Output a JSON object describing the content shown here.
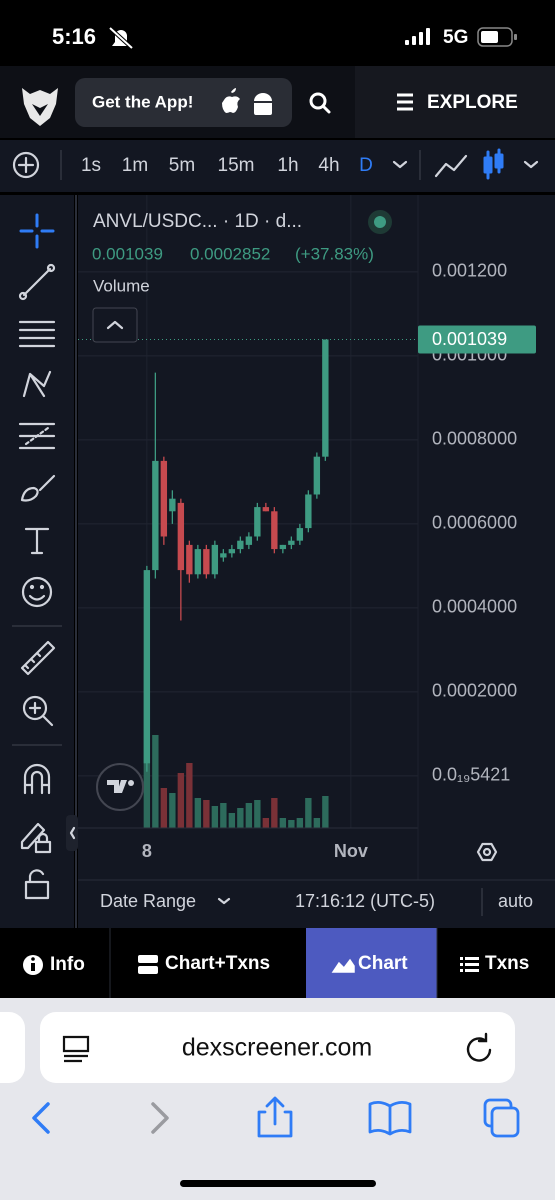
{
  "status_bar": {
    "time": "5:16",
    "network": "5G"
  },
  "header": {
    "app_button": "Get the App!",
    "explore": "EXPLORE"
  },
  "toolbar": {
    "intervals": [
      "1s",
      "1m",
      "5m",
      "15m",
      "1h",
      "4h",
      "D"
    ]
  },
  "chart_data": {
    "type": "candlestick",
    "title": "ANVL/USDC... · 1D · d...",
    "legend_values": [
      "0.001039",
      "0.0002852",
      "(+37.83%)"
    ],
    "x": [
      0,
      1,
      2,
      3,
      4,
      5,
      6,
      7,
      8,
      9,
      10,
      11,
      12,
      13,
      14,
      15,
      16,
      17,
      18,
      19,
      20,
      21
    ],
    "open": [
      3e-05,
      0.00049,
      0.00075,
      0.00063,
      0.00065,
      0.00055,
      0.00048,
      0.00054,
      0.00048,
      0.00052,
      0.00053,
      0.00054,
      0.00055,
      0.00057,
      0.00064,
      0.00063,
      0.00054,
      0.00055,
      0.00056,
      0.00059,
      0.00067,
      0.00076
    ],
    "high": [
      0.0005,
      0.00096,
      0.00076,
      0.00068,
      0.00066,
      0.00056,
      0.00055,
      0.00055,
      0.00056,
      0.00054,
      0.00055,
      0.00057,
      0.00058,
      0.00065,
      0.00065,
      0.00064,
      0.00055,
      0.00057,
      0.0006,
      0.00068,
      0.00077,
      0.001039
    ],
    "low": [
      1e-05,
      0.00047,
      0.00055,
      0.0006,
      0.00037,
      0.00046,
      0.00047,
      0.00047,
      0.00047,
      0.00051,
      0.00052,
      0.00053,
      0.00054,
      0.00056,
      0.00063,
      0.00053,
      0.00053,
      0.00054,
      0.00055,
      0.00058,
      0.00066,
      0.00075
    ],
    "close": [
      0.00049,
      0.00075,
      0.00057,
      0.00066,
      0.00049,
      0.00048,
      0.00054,
      0.00048,
      0.00055,
      0.00053,
      0.00054,
      0.00056,
      0.00057,
      0.00064,
      0.00063,
      0.00054,
      0.00055,
      0.00056,
      0.00059,
      0.00067,
      0.00076,
      0.001039
    ],
    "up_color": "#3e9b82",
    "down_color": "#c64a4f",
    "volume": {
      "name": "Volume",
      "values": [
        158,
        93,
        40,
        35,
        55,
        65,
        30,
        28,
        22,
        25,
        15,
        20,
        25,
        28,
        10,
        30,
        10,
        8,
        10,
        30,
        10,
        32
      ],
      "lim": [
        0,
        160
      ],
      "up_color": "#2d6b5c",
      "down_color": "#7a3137"
    },
    "xlim": [
      -8.1,
      31.9
    ],
    "xticks": [
      {
        "value": 0,
        "label": "8"
      },
      {
        "value": 24,
        "label": "Nov"
      }
    ],
    "ylim": [
      -0.000124,
      0.001383
    ],
    "yticks": [
      {
        "value": 5.421e-20,
        "label": "0.0₁₉5421"
      },
      {
        "value": 0.0002,
        "label": "0.0002000"
      },
      {
        "value": 0.0004,
        "label": "0.0004000"
      },
      {
        "value": 0.0006,
        "label": "0.0006000"
      },
      {
        "value": 0.0008,
        "label": "0.0008000"
      },
      {
        "value": 0.001,
        "label": "0.001000"
      },
      {
        "value": 0.0012,
        "label": "0.001200"
      }
    ],
    "grid": true
  },
  "chart_footer": {
    "date_range": "Date Range",
    "time": "17:16:12 (UTC-5)",
    "scale": "auto"
  },
  "tabs": [
    "Info",
    "Chart+Txns",
    "Chart",
    "Txns"
  ],
  "browser": {
    "url": "dexscreener.com"
  }
}
